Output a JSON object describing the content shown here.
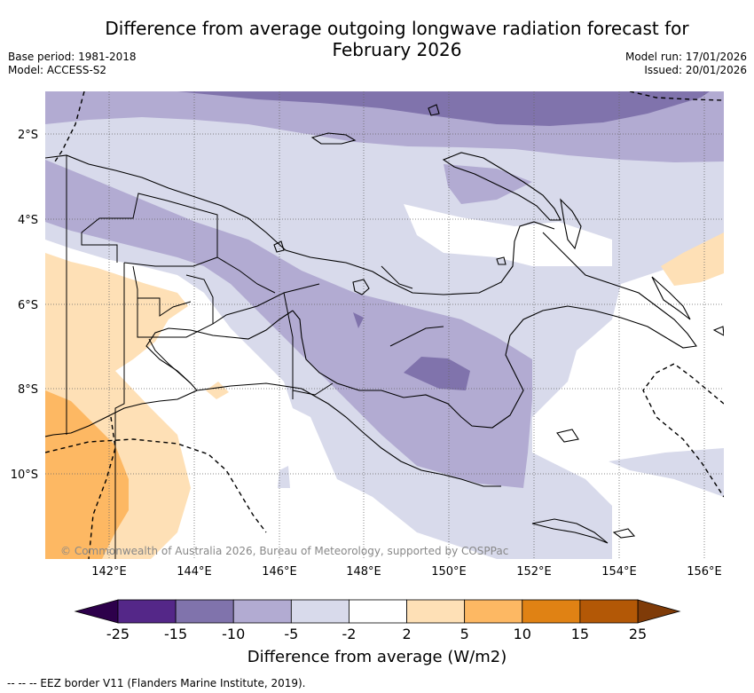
{
  "title": "Difference from average outgoing longwave radiation forecast for February 2026",
  "meta": {
    "base_period": "Base period: 1981-2018",
    "model": "Model: ACCESS-S2",
    "model_run": "Model run: 17/01/2026",
    "issued": "Issued: 20/01/2026"
  },
  "map": {
    "lat_labels": [
      "2°S",
      "4°S",
      "6°S",
      "8°S",
      "10°S"
    ],
    "lon_labels": [
      "142°E",
      "144°E",
      "146°E",
      "148°E",
      "150°E",
      "152°E",
      "154°E",
      "156°E"
    ],
    "copyright": "© Commonwealth of Australia 2026, Bureau of Meteorology, supported by COSPPac"
  },
  "colorbar": {
    "ticks": [
      "-25",
      "-15",
      "-10",
      "-5",
      "-2",
      "2",
      "5",
      "10",
      "15",
      "25"
    ],
    "colors": [
      "#542788",
      "#8073ac",
      "#b2abd2",
      "#d8daeb",
      "#ffffff",
      "#fee0b6",
      "#fdb863",
      "#e08214",
      "#b35806"
    ],
    "extend_low": "#2d004b",
    "extend_high": "#7f3b08",
    "label": "Difference from average (W/m2)"
  },
  "legend": {
    "eez": "-- -- -- EEZ border V11 (Flanders Marine Institute, 2019)."
  }
}
